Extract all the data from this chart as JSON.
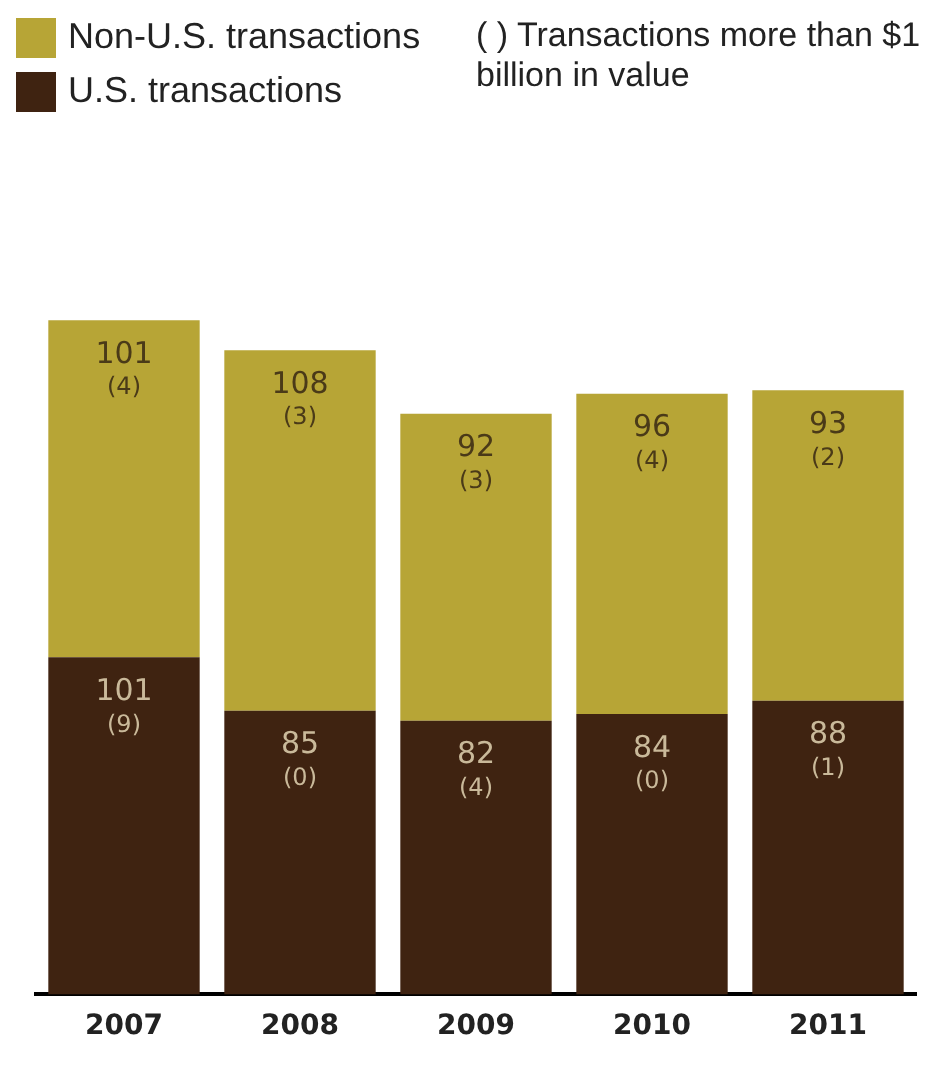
{
  "chart_data": {
    "type": "bar",
    "stacked": true,
    "categories": [
      "2007",
      "2008",
      "2009",
      "2010",
      "2011"
    ],
    "series": [
      {
        "name": "U.S. transactions",
        "color": "#3f2311",
        "values": [
          101,
          85,
          82,
          84,
          88
        ],
        "value_labels": [
          "101\n(9)",
          "85\n(0)",
          "82\n(4)",
          "84\n(0)",
          "88\n(1)"
        ]
      },
      {
        "name": "Non-U.S. transactions",
        "color": "#b7a536",
        "values": [
          101,
          108,
          92,
          96,
          93
        ],
        "value_labels": [
          "101\n(4)",
          "108\n(3)",
          "92\n(3)",
          "96\n(4)",
          "93\n(2)"
        ]
      }
    ],
    "legend": "top left",
    "annotations": [
      "( )  Transactions more than $1 billion in value"
    ]
  }
}
